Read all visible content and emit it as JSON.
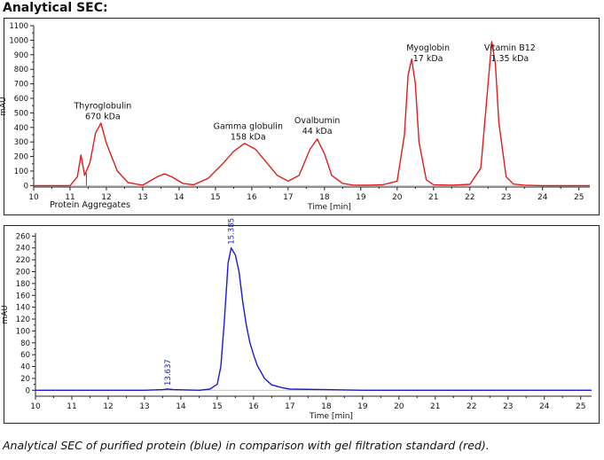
{
  "heading": "Analytical SEC:",
  "caption": "Analytical SEC of purified protein (blue) in comparison with gel filtration standard (red).",
  "chart_data": [
    {
      "type": "line",
      "ylabel": "mAU",
      "xlabel": "Time [min]",
      "xlim": [
        10,
        25.3
      ],
      "ylim": [
        -10,
        1100
      ],
      "xticks": [
        10,
        11,
        12,
        13,
        14,
        15,
        16,
        17,
        18,
        19,
        20,
        21,
        22,
        23,
        24,
        25
      ],
      "yticks": [
        0,
        100,
        200,
        300,
        400,
        500,
        600,
        700,
        800,
        900,
        1000,
        1100
      ],
      "grid": false,
      "series": [
        {
          "color": "#dd1e1e",
          "x": [
            10.0,
            11.0,
            11.2,
            11.3,
            11.4,
            11.55,
            11.7,
            11.85,
            12.0,
            12.3,
            12.6,
            13.0,
            13.4,
            13.6,
            13.8,
            14.1,
            14.4,
            14.8,
            15.2,
            15.5,
            15.8,
            16.1,
            16.4,
            16.7,
            17.0,
            17.3,
            17.6,
            17.8,
            18.0,
            18.2,
            18.5,
            18.8,
            19.2,
            19.6,
            20.0,
            20.2,
            20.3,
            20.4,
            20.5,
            20.6,
            20.8,
            21.0,
            21.5,
            22.0,
            22.3,
            22.5,
            22.6,
            22.7,
            22.8,
            23.0,
            23.2,
            23.5,
            24.0,
            25.3
          ],
          "y": [
            0,
            0,
            60,
            210,
            70,
            160,
            360,
            430,
            290,
            100,
            20,
            3,
            60,
            80,
            60,
            15,
            5,
            50,
            150,
            235,
            290,
            250,
            160,
            70,
            30,
            70,
            250,
            320,
            220,
            70,
            15,
            3,
            2,
            5,
            30,
            350,
            760,
            870,
            700,
            300,
            40,
            6,
            2,
            8,
            120,
            700,
            990,
            840,
            430,
            60,
            10,
            3,
            0,
            0
          ]
        }
      ],
      "annotations": [
        {
          "label": "Thyroglobulin",
          "sub": "670 kDa",
          "x": 11.9,
          "y": 530
        },
        {
          "label": "Gamma globulin",
          "sub": "158 kDa",
          "x": 15.9,
          "y": 390
        },
        {
          "label": "Ovalbumin",
          "sub": "44 kDa",
          "x": 17.8,
          "y": 430
        },
        {
          "label": "Myoglobin",
          "sub": "17 kDa",
          "x": 20.85,
          "y": 930
        },
        {
          "label": "Vitamin B12",
          "sub": "1.35 kDa",
          "x": 23.1,
          "y": 930
        },
        {
          "label": "Protein Aggregates",
          "x": 11.55,
          "below": true
        }
      ]
    },
    {
      "type": "line",
      "ylabel": "mAU",
      "xlabel": "Time [min]",
      "xlim": [
        10,
        25.3
      ],
      "ylim": [
        -10,
        265
      ],
      "xticks": [
        10,
        11,
        12,
        13,
        14,
        15,
        16,
        17,
        18,
        19,
        20,
        21,
        22,
        23,
        24,
        25
      ],
      "yticks": [
        0,
        20,
        40,
        60,
        80,
        100,
        120,
        140,
        160,
        180,
        200,
        220,
        240,
        260
      ],
      "grid": false,
      "series": [
        {
          "color": "#1a1ad6",
          "x": [
            10.0,
            11.0,
            12.0,
            13.0,
            13.5,
            13.637,
            13.8,
            14.5,
            14.8,
            15.0,
            15.1,
            15.2,
            15.3,
            15.385,
            15.5,
            15.6,
            15.7,
            15.8,
            15.9,
            16.0,
            16.1,
            16.3,
            16.5,
            16.8,
            17.0,
            18.0,
            19.0,
            20.0,
            21.0,
            22.0,
            23.0,
            24.0,
            25.3
          ],
          "y": [
            0,
            0,
            0,
            0,
            1,
            2,
            1,
            0,
            2,
            10,
            40,
            120,
            215,
            240,
            228,
            200,
            150,
            110,
            80,
            60,
            42,
            20,
            9,
            4,
            2,
            1,
            0,
            0,
            0,
            0,
            0,
            0,
            0
          ]
        }
      ],
      "peak_labels": [
        {
          "label": "13.637",
          "x": 13.637,
          "y": 2
        },
        {
          "label": "15.385",
          "x": 15.385,
          "y": 240
        }
      ]
    }
  ]
}
